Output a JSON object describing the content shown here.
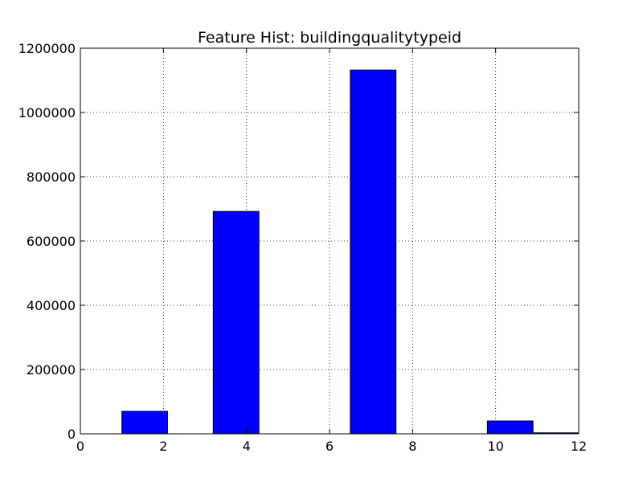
{
  "chart_data": {
    "type": "bar",
    "title": "Feature Hist: buildingqualitytypeid",
    "xlabel": "",
    "ylabel": "",
    "xlim": [
      0,
      12
    ],
    "ylim": [
      0,
      1200000
    ],
    "x_ticks": [
      0,
      2,
      4,
      6,
      8,
      10,
      12
    ],
    "y_ticks": [
      0,
      200000,
      400000,
      600000,
      800000,
      1000000,
      1200000
    ],
    "grid": true,
    "bar_color": "#0000ff",
    "edge_color": "#000000",
    "bins": [
      {
        "x0": 1.0,
        "x1": 2.1,
        "value": 70000
      },
      {
        "x0": 3.2,
        "x1": 4.3,
        "value": 692000
      },
      {
        "x0": 6.5,
        "x1": 7.6,
        "value": 1132000
      },
      {
        "x0": 9.8,
        "x1": 10.9,
        "value": 40000
      },
      {
        "x0": 10.9,
        "x1": 12.0,
        "value": 3000
      }
    ]
  }
}
